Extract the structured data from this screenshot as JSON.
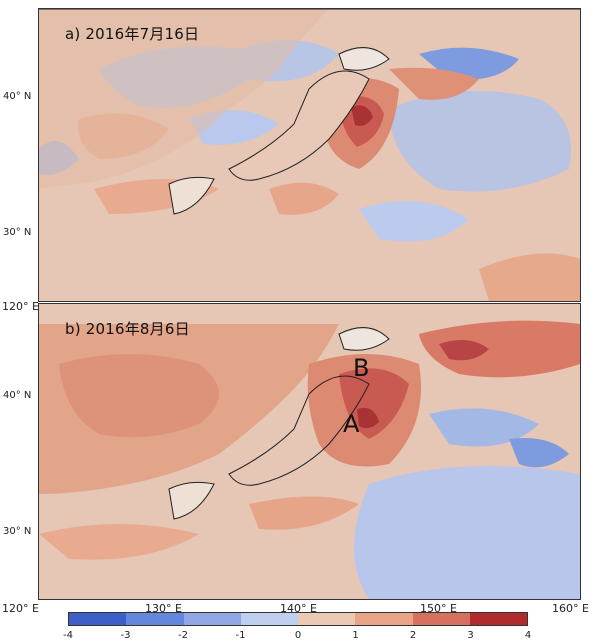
{
  "panels": [
    {
      "label": "a) 2016年7月16日",
      "regions": []
    },
    {
      "label": "b) 2016年8月6日",
      "regions": [
        "A",
        "B"
      ]
    }
  ],
  "y_ticks": [
    "40° N",
    "30° N"
  ],
  "x_ticks": [
    "120° E",
    "130° E",
    "140° E",
    "150° E",
    "160° E"
  ],
  "colorbar": {
    "ticks": [
      "-4",
      "-3",
      "-2",
      "-1",
      "0",
      "1",
      "2",
      "3",
      "4"
    ],
    "colors": [
      "#3f5fc8",
      "#6486dc",
      "#90a9e6",
      "#c1cfee",
      "#ecc9b5",
      "#e9a589",
      "#d67160",
      "#b12a2e"
    ]
  },
  "palette": {
    "sea_neutral": "#e6c6b4",
    "land_warm": "#dc9078",
    "cool": "#a9bce8",
    "hot": "#c0484a"
  }
}
